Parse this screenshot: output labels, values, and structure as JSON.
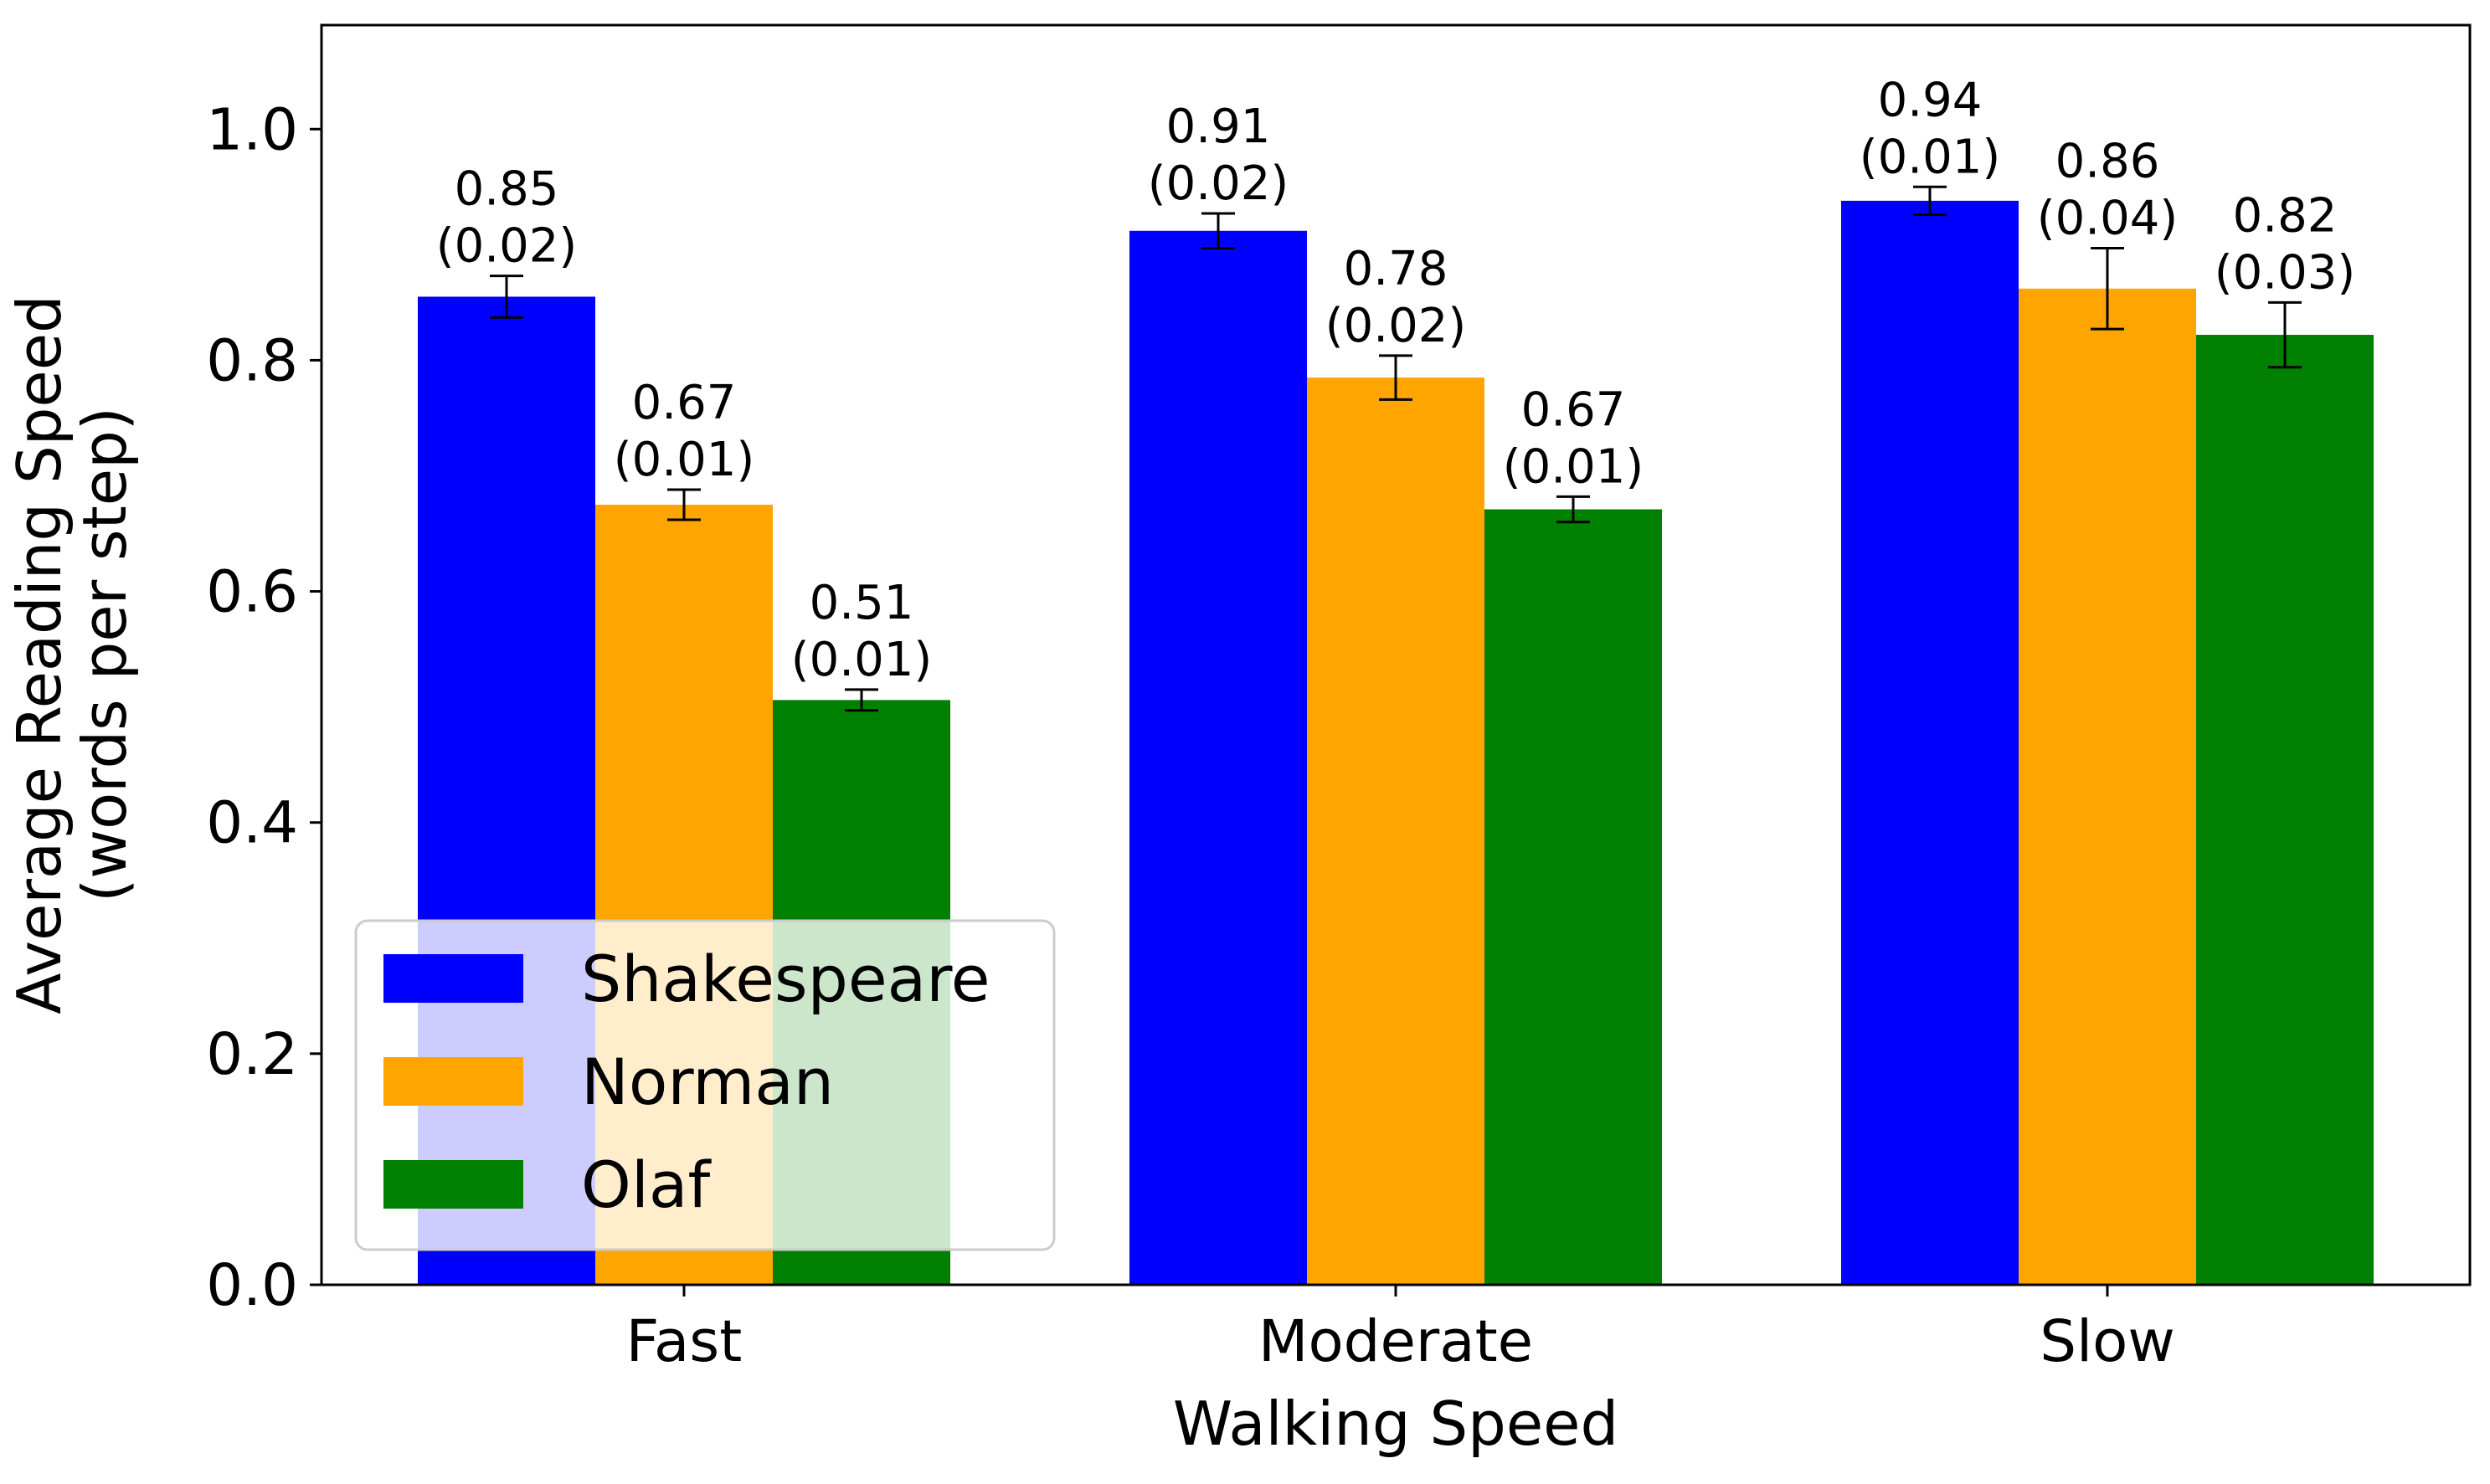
{
  "chart_data": {
    "type": "bar",
    "title": "",
    "xlabel": "Walking Speed",
    "ylabel": [
      "Average Reading Speed",
      "(words per step)"
    ],
    "categories": [
      "Fast",
      "Moderate",
      "Slow"
    ],
    "series": [
      {
        "name": "Shakespeare",
        "color": "#0000ff",
        "values": [
          0.855,
          0.912,
          0.938
        ],
        "errors": [
          0.018,
          0.015,
          0.012
        ],
        "labels": [
          [
            "0.85",
            "(0.02)"
          ],
          [
            "0.91",
            "(0.02)"
          ],
          [
            "0.94",
            "(0.01)"
          ]
        ]
      },
      {
        "name": "Norman",
        "color": "#ffa500",
        "values": [
          0.675,
          0.785,
          0.862
        ],
        "errors": [
          0.013,
          0.019,
          0.035
        ],
        "labels": [
          [
            "0.67",
            "(0.01)"
          ],
          [
            "0.78",
            "(0.02)"
          ],
          [
            "0.86",
            "(0.04)"
          ]
        ]
      },
      {
        "name": "Olaf",
        "color": "#008000",
        "values": [
          0.506,
          0.671,
          0.822
        ],
        "errors": [
          0.009,
          0.011,
          0.028
        ],
        "labels": [
          [
            "0.51",
            "(0.01)"
          ],
          [
            "0.67",
            "(0.01)"
          ],
          [
            "0.82",
            "(0.03)"
          ]
        ]
      }
    ],
    "ylim": [
      0,
      1.09
    ],
    "yticks": [
      0.0,
      0.2,
      0.4,
      0.6,
      0.8,
      1.0
    ],
    "ytick_labels": [
      "0.0",
      "0.2",
      "0.4",
      "0.6",
      "0.8",
      "1.0"
    ],
    "grid": false,
    "legend_position": "lower-left"
  }
}
